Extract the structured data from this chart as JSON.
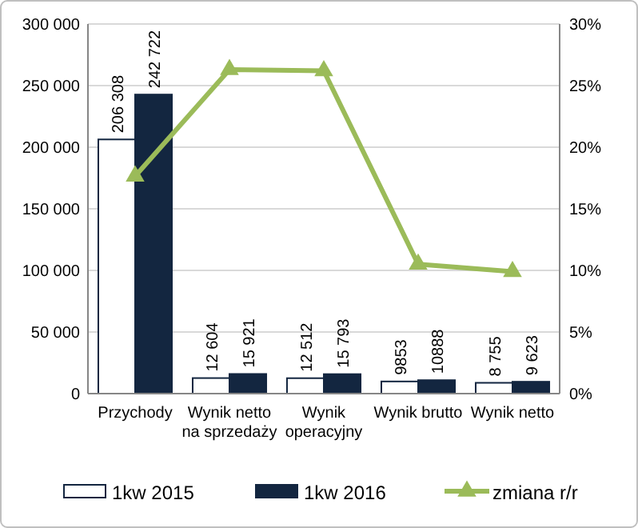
{
  "chart_data": {
    "type": "bar",
    "categories": [
      "Przychody",
      "Wynik netto na sprzedaży",
      "Wynik operacyjny",
      "Wynik brutto",
      "Wynik netto"
    ],
    "series": [
      {
        "name": "1kw 2015",
        "color": "#ffffff",
        "values": [
          206308,
          12604,
          12512,
          9853,
          8755
        ],
        "value_labels": [
          "206 308",
          "12 604",
          "12 512",
          "9853",
          "8 755"
        ]
      },
      {
        "name": "1kw 2016",
        "color": "#132640",
        "values": [
          242722,
          15921,
          15793,
          10888,
          9623
        ],
        "value_labels": [
          "242 722",
          "15 921",
          "15 793",
          "10888",
          "9 623"
        ]
      },
      {
        "name": "zmiana r/r",
        "type": "line",
        "axis": "y2",
        "color": "#9bbb59",
        "marker": "triangle",
        "line_style": "solid",
        "values": [
          17.65,
          26.3,
          26.2,
          10.5,
          9.9
        ]
      }
    ],
    "ylim": [
      0,
      300000
    ],
    "yticks": [
      {
        "value": 0,
        "label": "0"
      },
      {
        "value": 50000,
        "label": "50 000"
      },
      {
        "value": 100000,
        "label": "100 000"
      },
      {
        "value": 150000,
        "label": "150 000"
      },
      {
        "value": 200000,
        "label": "200 000"
      },
      {
        "value": 250000,
        "label": "250 000"
      },
      {
        "value": 300000,
        "label": "300 000"
      }
    ],
    "y2lim": [
      0,
      30
    ],
    "y2ticks": [
      {
        "value": 0,
        "label": "0%"
      },
      {
        "value": 5,
        "label": "5%"
      },
      {
        "value": 10,
        "label": "10%"
      },
      {
        "value": 15,
        "label": "15%"
      },
      {
        "value": 20,
        "label": "20%"
      },
      {
        "value": 25,
        "label": "25%"
      },
      {
        "value": 30,
        "label": "30%"
      }
    ],
    "grid": "y",
    "legend": "bottom"
  }
}
